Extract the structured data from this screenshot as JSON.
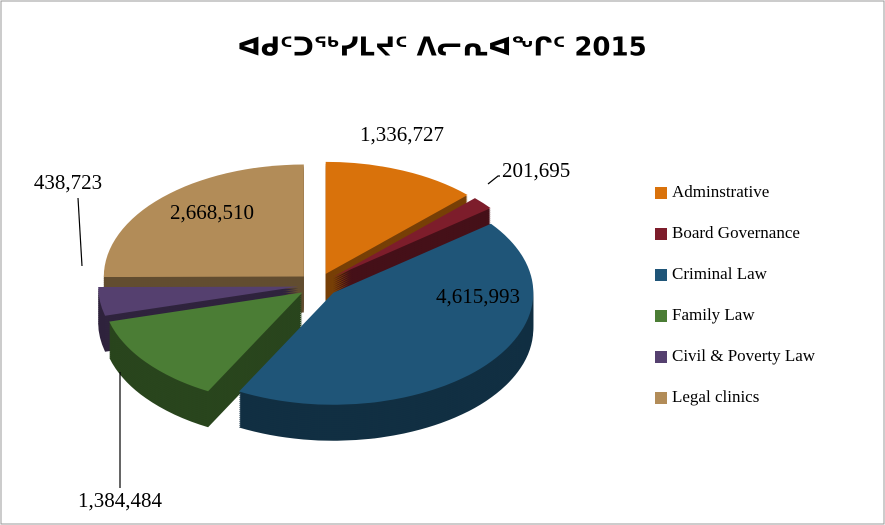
{
  "chart_data": {
    "type": "pie",
    "title": "ᐊᑯᑦᑐᖅᓯᒪᔪᑦ ᐱᓕᕆᐊᖏᑦ 2015",
    "categories": [
      "Adminstrative",
      "Board Governance",
      "Criminal Law",
      "Family Law",
      "Civil & Poverty Law",
      "Legal clinics"
    ],
    "values": [
      1336727,
      201695,
      4615993,
      1384484,
      438723,
      2668510
    ],
    "value_labels": [
      "1,336,727",
      "201,695",
      "4,615,993",
      "1,384,484",
      "438,723",
      "2,668,510"
    ],
    "colors": [
      "#d9720b",
      "#7d1d2b",
      "#1f5578",
      "#4b7d35",
      "#55406f",
      "#b28c58"
    ],
    "legend": "right"
  }
}
